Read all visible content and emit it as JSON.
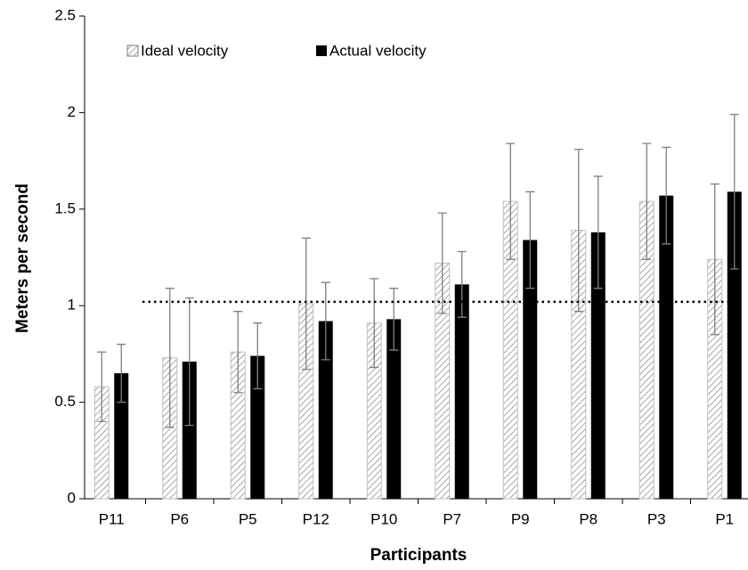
{
  "chart_data": {
    "type": "bar",
    "x_label": "Participants",
    "y_label": "Meters per second",
    "categories": [
      "P11",
      "P6",
      "P5",
      "P12",
      "P10",
      "P7",
      "P9",
      "P8",
      "P3",
      "P1"
    ],
    "series": [
      {
        "name": "Ideal velocity",
        "color": "#a6a6a6",
        "hatch": true,
        "values": [
          0.58,
          0.73,
          0.76,
          1.01,
          0.91,
          1.22,
          1.54,
          1.39,
          1.54,
          1.24
        ],
        "errors": [
          0.18,
          0.36,
          0.21,
          0.34,
          0.23,
          0.26,
          0.3,
          0.42,
          0.3,
          0.39
        ]
      },
      {
        "name": "Actual velocity",
        "color": "#000000",
        "hatch": false,
        "values": [
          0.65,
          0.71,
          0.74,
          0.92,
          0.93,
          1.11,
          1.34,
          1.38,
          1.57,
          1.59
        ],
        "errors": [
          0.15,
          0.33,
          0.17,
          0.2,
          0.16,
          0.17,
          0.25,
          0.29,
          0.25,
          0.4
        ]
      }
    ],
    "reference_line": 1.02,
    "ylim": [
      0,
      2.5
    ],
    "yticks": [
      0,
      0.5,
      1,
      1.5,
      2,
      2.5
    ],
    "grid": false,
    "legend": "top-left"
  }
}
